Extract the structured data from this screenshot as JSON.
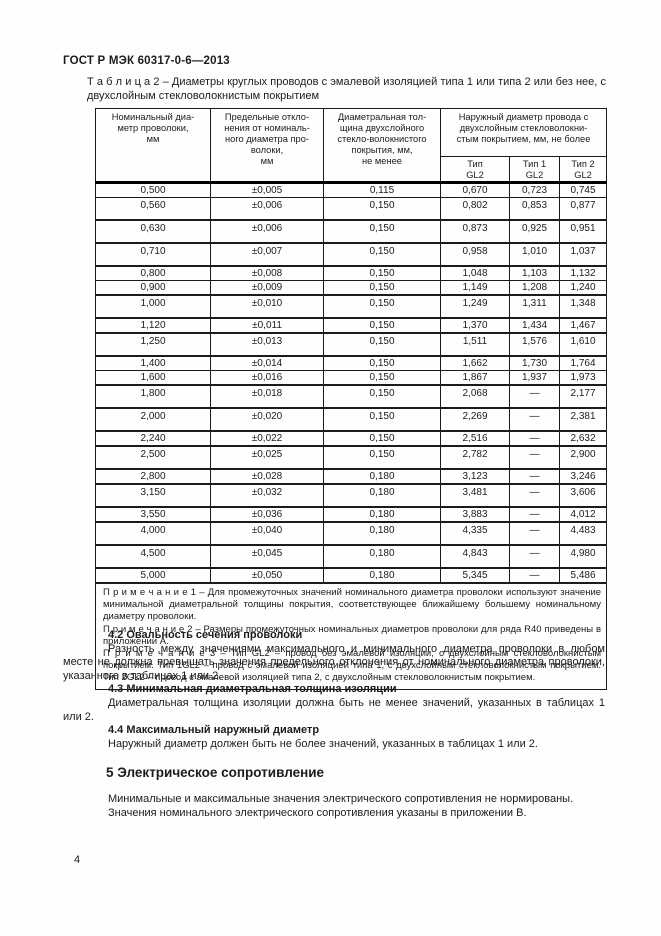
{
  "page": {
    "running_header": "ГОСТ Р МЭК 60317-0-6—2013",
    "page_number": "4"
  },
  "table": {
    "caption_label": "Т а б л и ц а  2",
    "caption_text": "– Диаметры круглых проводов с эмалевой изоляцией типа 1 или типа 2 или без нее, с двухслойным стекловолокнистым  покрытием",
    "headers": {
      "col1": "Номинальный диа-\nметр проволоки,\nмм",
      "col2": "Предельные откло-\nнения от номиналь-\nного диаметра про-\nволоки,\nмм",
      "col3": "Диаметральная тол-\nщина  двухслойного\nстекло-волокнистого\nпокрытия, мм,\nне менее",
      "col4": "Наружный диаметр провода с\nдвухслойным стекловолокни-\nстым покрытием, мм, не более",
      "sub1": "Тип\nGL2",
      "sub2": "Тип 1\nGL2",
      "sub3": "Тип 2\nGL2"
    },
    "rows": [
      {
        "d": "0,500",
        "tol": "±0,005",
        "th": "0,115",
        "gl2": "0,670",
        "t1": "0,723",
        "t2": "0,745",
        "thick": false,
        "tall": false
      },
      {
        "d": "0,560",
        "tol": "±0,006",
        "th": "0,150",
        "gl2": "0,802",
        "t1": "0,853",
        "t2": "0,877",
        "thick": true,
        "tall": true
      },
      {
        "d": "0,630",
        "tol": "±0,006",
        "th": "0,150",
        "gl2": "0,873",
        "t1": "0,925",
        "t2": "0,951",
        "thick": true,
        "tall": true
      },
      {
        "d": "0,710",
        "tol": "±0,007",
        "th": "0,150",
        "gl2": "0,958",
        "t1": "1,010",
        "t2": "1,037",
        "thick": true,
        "tall": true
      },
      {
        "d": "0,800",
        "tol": "±0,008",
        "th": "0,150",
        "gl2": "1,048",
        "t1": "1,103",
        "t2": "1,132",
        "thick": false,
        "tall": false
      },
      {
        "d": "0,900",
        "tol": "±0,009",
        "th": "0,150",
        "gl2": "1,149",
        "t1": "1,208",
        "t2": "1,240",
        "thick": true,
        "tall": false
      },
      {
        "d": "1,000",
        "tol": "±0,010",
        "th": "0,150",
        "gl2": "1,249",
        "t1": "1,311",
        "t2": "1,348",
        "thick": true,
        "tall": true
      },
      {
        "d": "1,120",
        "tol": "±0,011",
        "th": "0,150",
        "gl2": "1,370",
        "t1": "1,434",
        "t2": "1,467",
        "thick": true,
        "tall": false
      },
      {
        "d": "1,250",
        "tol": "±0,013",
        "th": "0,150",
        "gl2": "1,511",
        "t1": "1,576",
        "t2": "1,610",
        "thick": true,
        "tall": true
      },
      {
        "d": "1,400",
        "tol": "±0,014",
        "th": "0,150",
        "gl2": "1,662",
        "t1": "1,730",
        "t2": "1,764",
        "thick": false,
        "tall": false
      },
      {
        "d": "1,600",
        "tol": "±0,016",
        "th": "0,150",
        "gl2": "1,867",
        "t1": "1,937",
        "t2": "1,973",
        "thick": true,
        "tall": false
      },
      {
        "d": "1,800",
        "tol": "±0,018",
        "th": "0,150",
        "gl2": "2,068",
        "t1": "—",
        "t2": "2,177",
        "thick": true,
        "tall": true
      },
      {
        "d": "2,000",
        "tol": "±0,020",
        "th": "0,150",
        "gl2": "2,269",
        "t1": "—",
        "t2": "2,381",
        "thick": true,
        "tall": true
      },
      {
        "d": "2,240",
        "tol": "±0,022",
        "th": "0,150",
        "gl2": "2,516",
        "t1": "—",
        "t2": "2,632",
        "thick": true,
        "tall": false
      },
      {
        "d": "2,500",
        "tol": "±0,025",
        "th": "0,150",
        "gl2": "2,782",
        "t1": "—",
        "t2": "2,900",
        "thick": true,
        "tall": true
      },
      {
        "d": "2,800",
        "tol": "±0,028",
        "th": "0,180",
        "gl2": "3,123",
        "t1": "—",
        "t2": "3,246",
        "thick": true,
        "tall": false
      },
      {
        "d": "3,150",
        "tol": "±0,032",
        "th": "0,180",
        "gl2": "3,481",
        "t1": "—",
        "t2": "3,606",
        "thick": true,
        "tall": true
      },
      {
        "d": "3,550",
        "tol": "±0,036",
        "th": "0,180",
        "gl2": "3,883",
        "t1": "—",
        "t2": "4,012",
        "thick": true,
        "tall": false
      },
      {
        "d": "4,000",
        "tol": "±0,040",
        "th": "0,180",
        "gl2": "4,335",
        "t1": "—",
        "t2": "4,483",
        "thick": true,
        "tall": true
      },
      {
        "d": "4,500",
        "tol": "±0,045",
        "th": "0,180",
        "gl2": "4,843",
        "t1": "—",
        "t2": "4,980",
        "thick": true,
        "tall": true
      },
      {
        "d": "5,000",
        "tol": "±0,050",
        "th": "0,180",
        "gl2": "5,345",
        "t1": "—",
        "t2": "5,486",
        "thick": true,
        "tall": false
      }
    ],
    "notes": [
      {
        "label": "П р и м е ч а н и е  1",
        "text": "– Для промежуточных значений номинального диаметра проволоки используют значение минимальной диаметральной толщины покрытия, соответствующее ближайшему большему номинальному диаметру проволоки."
      },
      {
        "label": "П р и м е ч а н и е  2",
        "text": "– Размеры промежуточных номинальных диаметров проволоки для ряда R40 приведены в приложении А."
      },
      {
        "label": "П р и м е ч а н и е  3",
        "text": "– Тип GL2 – провод без эмалевой изоляции, с двухслойным стекловолокнистым покрытием. Тип 1GL2 – провод с эмалевой изоляцией типа 1, с двухслойным стекловолокнистым покрытием. Тип 2GL2 – провод с эмалевой изоляцией типа 2,  с двухслойным стекловолокнистым покрытием."
      }
    ]
  },
  "sections": [
    {
      "heading": "4.2 Овальность сечения проволоки",
      "paragraph": "Разность между значениями максимального и минимального диаметра проволоки в любом месте не должна превышать значения предельного отклонения от номинального диаметра проволоки, указанного в таблицах 1 или 2."
    },
    {
      "heading": "4.3 Минимальная диаметральная толщина изоляции",
      "paragraph": "Диаметральная толщина изоляции должна быть не менее значений, указанных в таблицах 1 или 2."
    },
    {
      "heading": "4.4 Максимальный наружный диаметр",
      "paragraph": "Наружный диаметр должен быть не более значений, указанных в таблицах 1 или 2."
    }
  ],
  "chapter": {
    "heading": "5 Электрическое сопротивление",
    "paragraph1": "Минимальные и максимальные значения электрического сопротивления не нормированы.",
    "paragraph2": "Значения  номинального  электрического сопротивления указаны в приложении В."
  }
}
